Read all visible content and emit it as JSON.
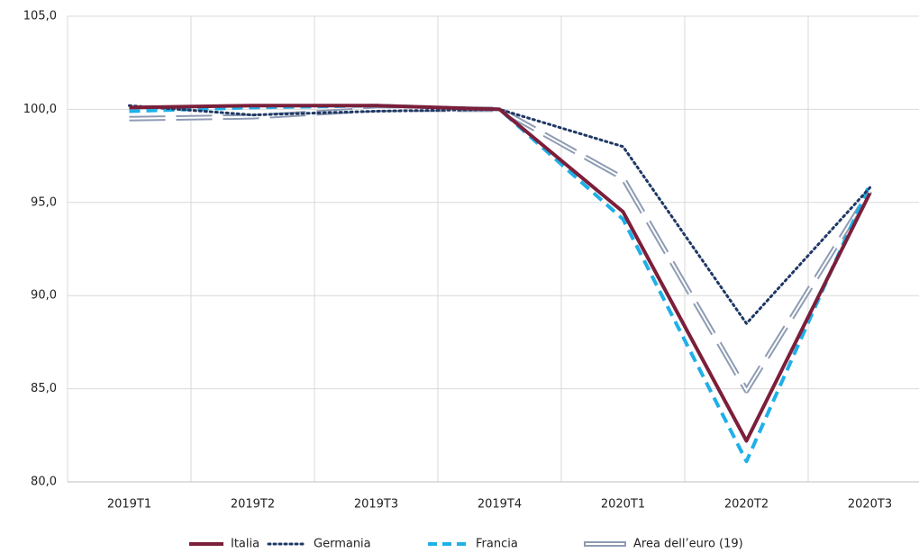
{
  "chart_data": {
    "type": "line",
    "categories": [
      "2019T1",
      "2019T2",
      "2019T3",
      "2019T4",
      "2020T1",
      "2020T2",
      "2020T3"
    ],
    "series": [
      {
        "name": "Italia",
        "color": "#7b1f3a",
        "style": "solid",
        "values": [
          100.1,
          100.2,
          100.2,
          100.0,
          94.5,
          82.2,
          95.5
        ]
      },
      {
        "name": "Germania",
        "color": "#1f3864",
        "style": "dotted",
        "values": [
          100.2,
          99.7,
          99.9,
          100.0,
          98.0,
          88.5,
          95.8
        ]
      },
      {
        "name": "Francia",
        "color": "#1fb0e8",
        "style": "dashed",
        "values": [
          99.9,
          100.1,
          100.2,
          100.0,
          94.1,
          81.1,
          96.0
        ]
      },
      {
        "name": "Area dell’euro (19)",
        "color": "#8e9bb3",
        "style": "double",
        "values": [
          99.5,
          99.6,
          100.0,
          100.0,
          96.3,
          84.9,
          95.6
        ]
      }
    ],
    "ylim": [
      80,
      105
    ],
    "yticks": [
      {
        "value": 80,
        "label": "80,0"
      },
      {
        "value": 85,
        "label": "85,0"
      },
      {
        "value": 90,
        "label": "90,0"
      },
      {
        "value": 95,
        "label": "95,0"
      },
      {
        "value": 100,
        "label": "100,0"
      },
      {
        "value": 105,
        "label": "105,0"
      }
    ],
    "grid": true,
    "legend": "bottom"
  }
}
